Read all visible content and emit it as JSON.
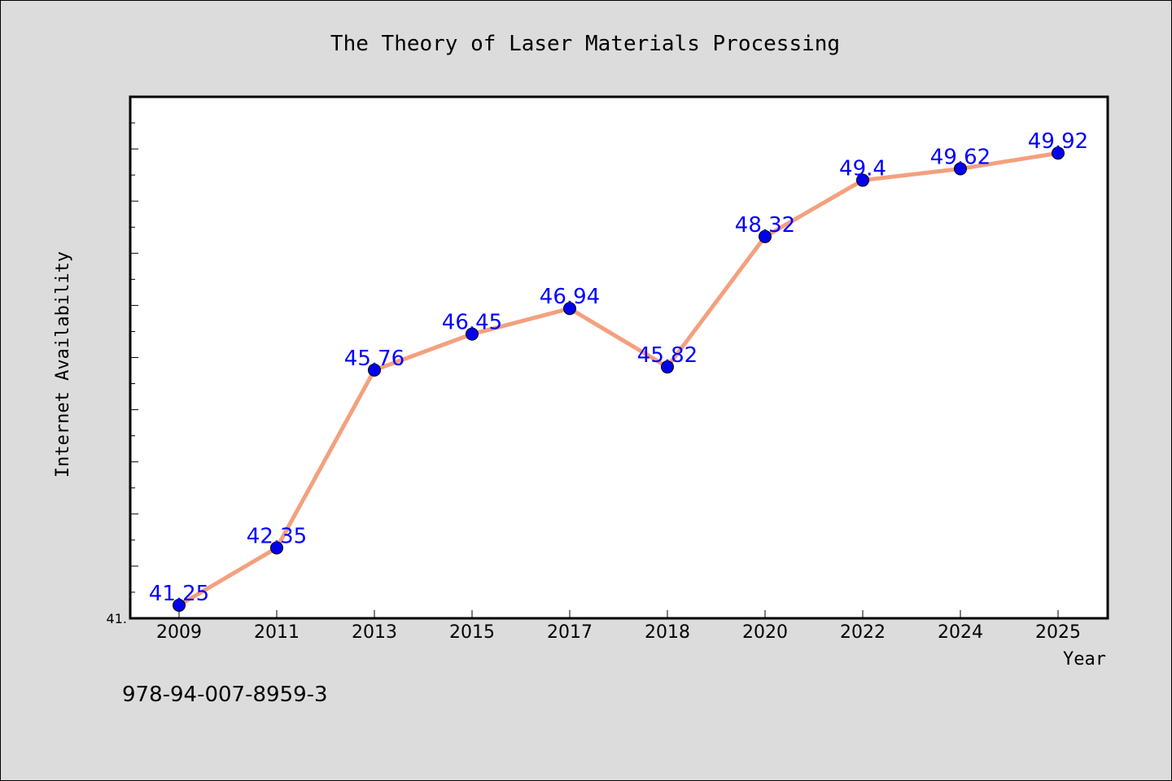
{
  "chart_data": {
    "type": "line",
    "title": "The Theory of Laser Materials Processing",
    "xlabel": "Year",
    "ylabel": "Internet Availability",
    "categories": [
      "2009",
      "2011",
      "2013",
      "2015",
      "2017",
      "2018",
      "2020",
      "2022",
      "2024",
      "2025"
    ],
    "series": [
      {
        "values": [
          41.25,
          42.35,
          45.76,
          46.45,
          46.94,
          45.82,
          48.32,
          49.4,
          49.62,
          49.92
        ],
        "data_labels": [
          "41.25",
          "42.35",
          "45.76",
          "46.45",
          "46.94",
          "45.82",
          "48.32",
          "49.4",
          "49.62",
          "49.92"
        ],
        "line_color": "#f4a07e",
        "marker_color": "#0000ee",
        "label_color": "#0000ff"
      }
    ],
    "ylim": [
      41.0,
      51.0
    ],
    "y_tick_labels": [
      "41."
    ],
    "grid": false,
    "legend": "none"
  },
  "footer": {
    "isbn": "978-94-007-8959-3"
  }
}
